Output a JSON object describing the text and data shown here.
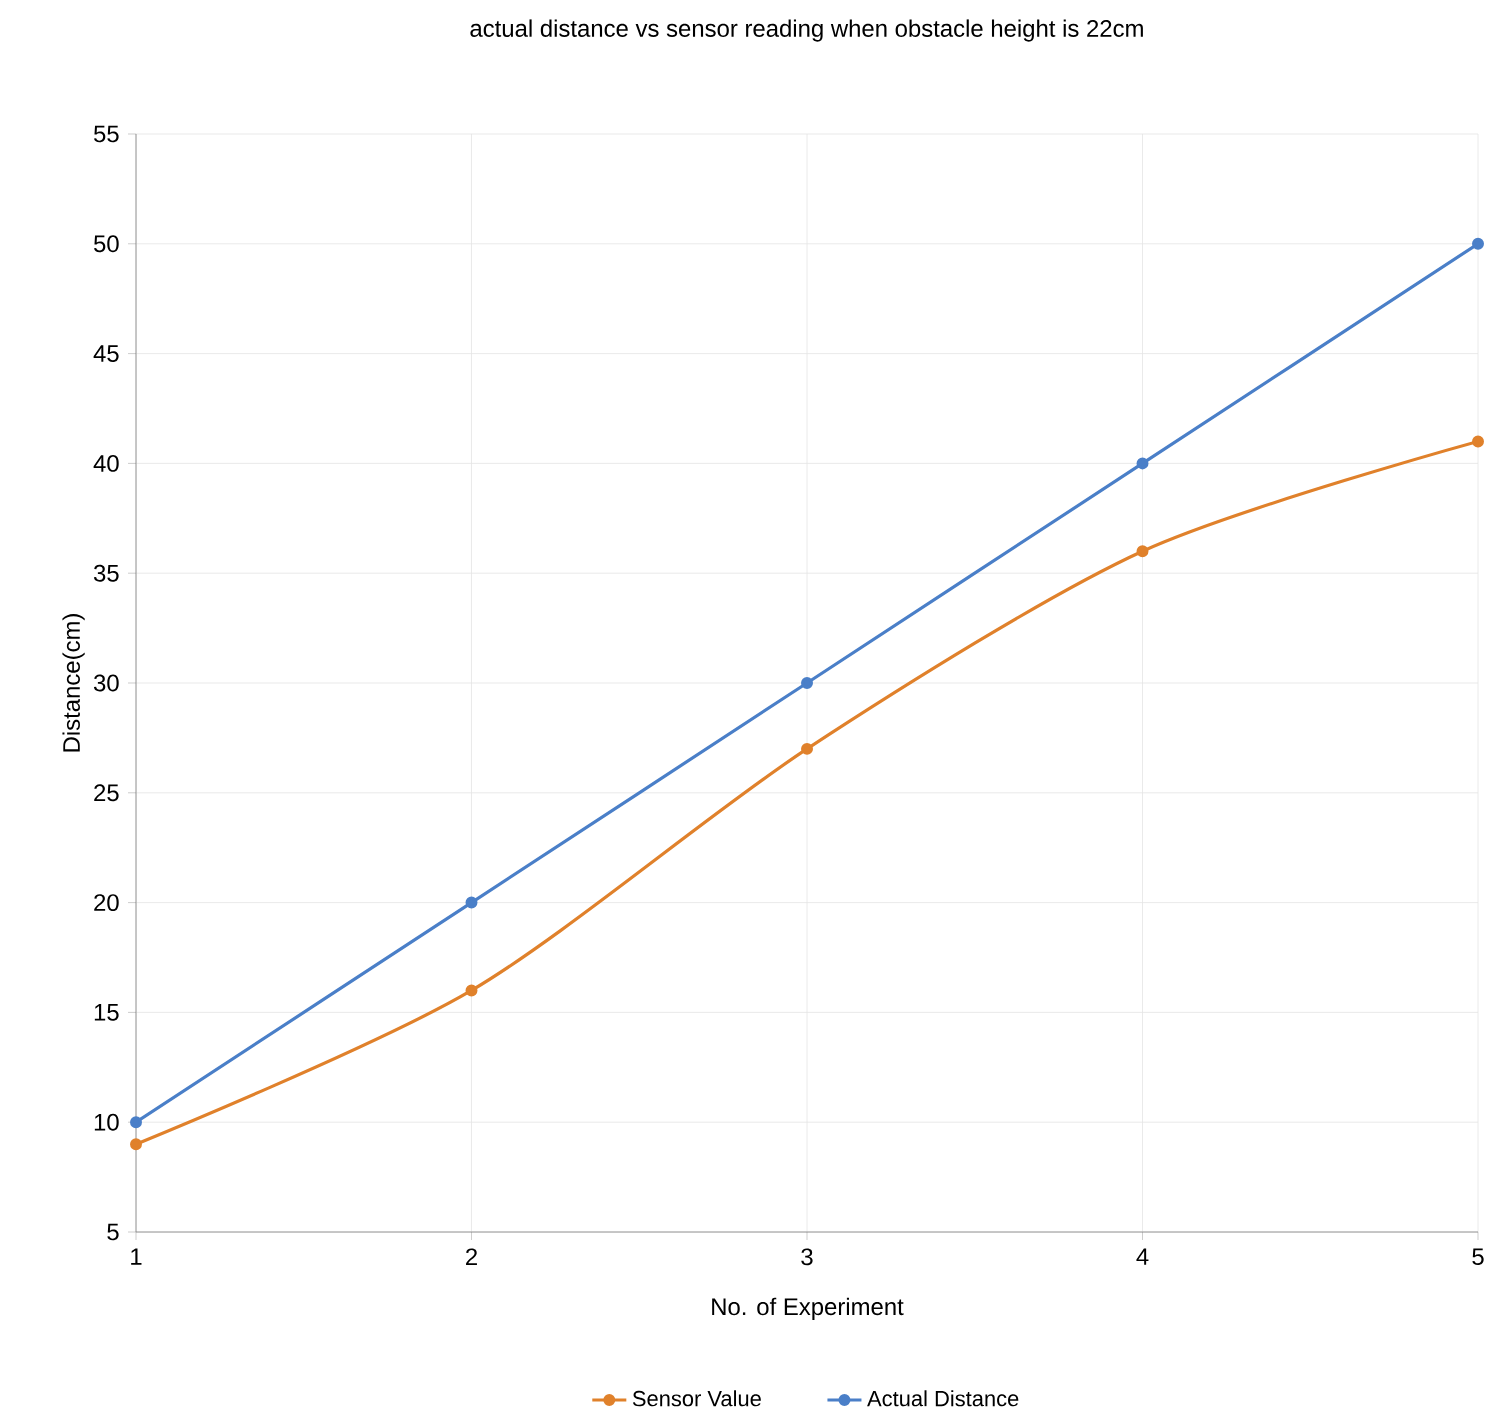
{
  "chart_data": {
    "type": "line",
    "title": "actual distance vs sensor reading when obstacle height is 22cm",
    "xlabel": "No. of Experiment",
    "ylabel": "Distance(cm)",
    "x": [
      1,
      2,
      3,
      4,
      5
    ],
    "xlim": [
      1,
      5
    ],
    "xticks": [
      1,
      2,
      3,
      4,
      5
    ],
    "ylim": [
      5,
      55
    ],
    "yticks": [
      5,
      10,
      15,
      20,
      25,
      30,
      35,
      40,
      45,
      50,
      55
    ],
    "series": [
      {
        "name": "Sensor Value",
        "color": "#e0812b",
        "values": [
          9,
          16,
          27,
          36,
          41
        ]
      },
      {
        "name": "Actual Distance",
        "color": "#4a7fc8",
        "values": [
          10,
          20,
          30,
          40,
          50
        ]
      }
    ],
    "grid": true,
    "legend": "bottom",
    "marker": "circle"
  }
}
